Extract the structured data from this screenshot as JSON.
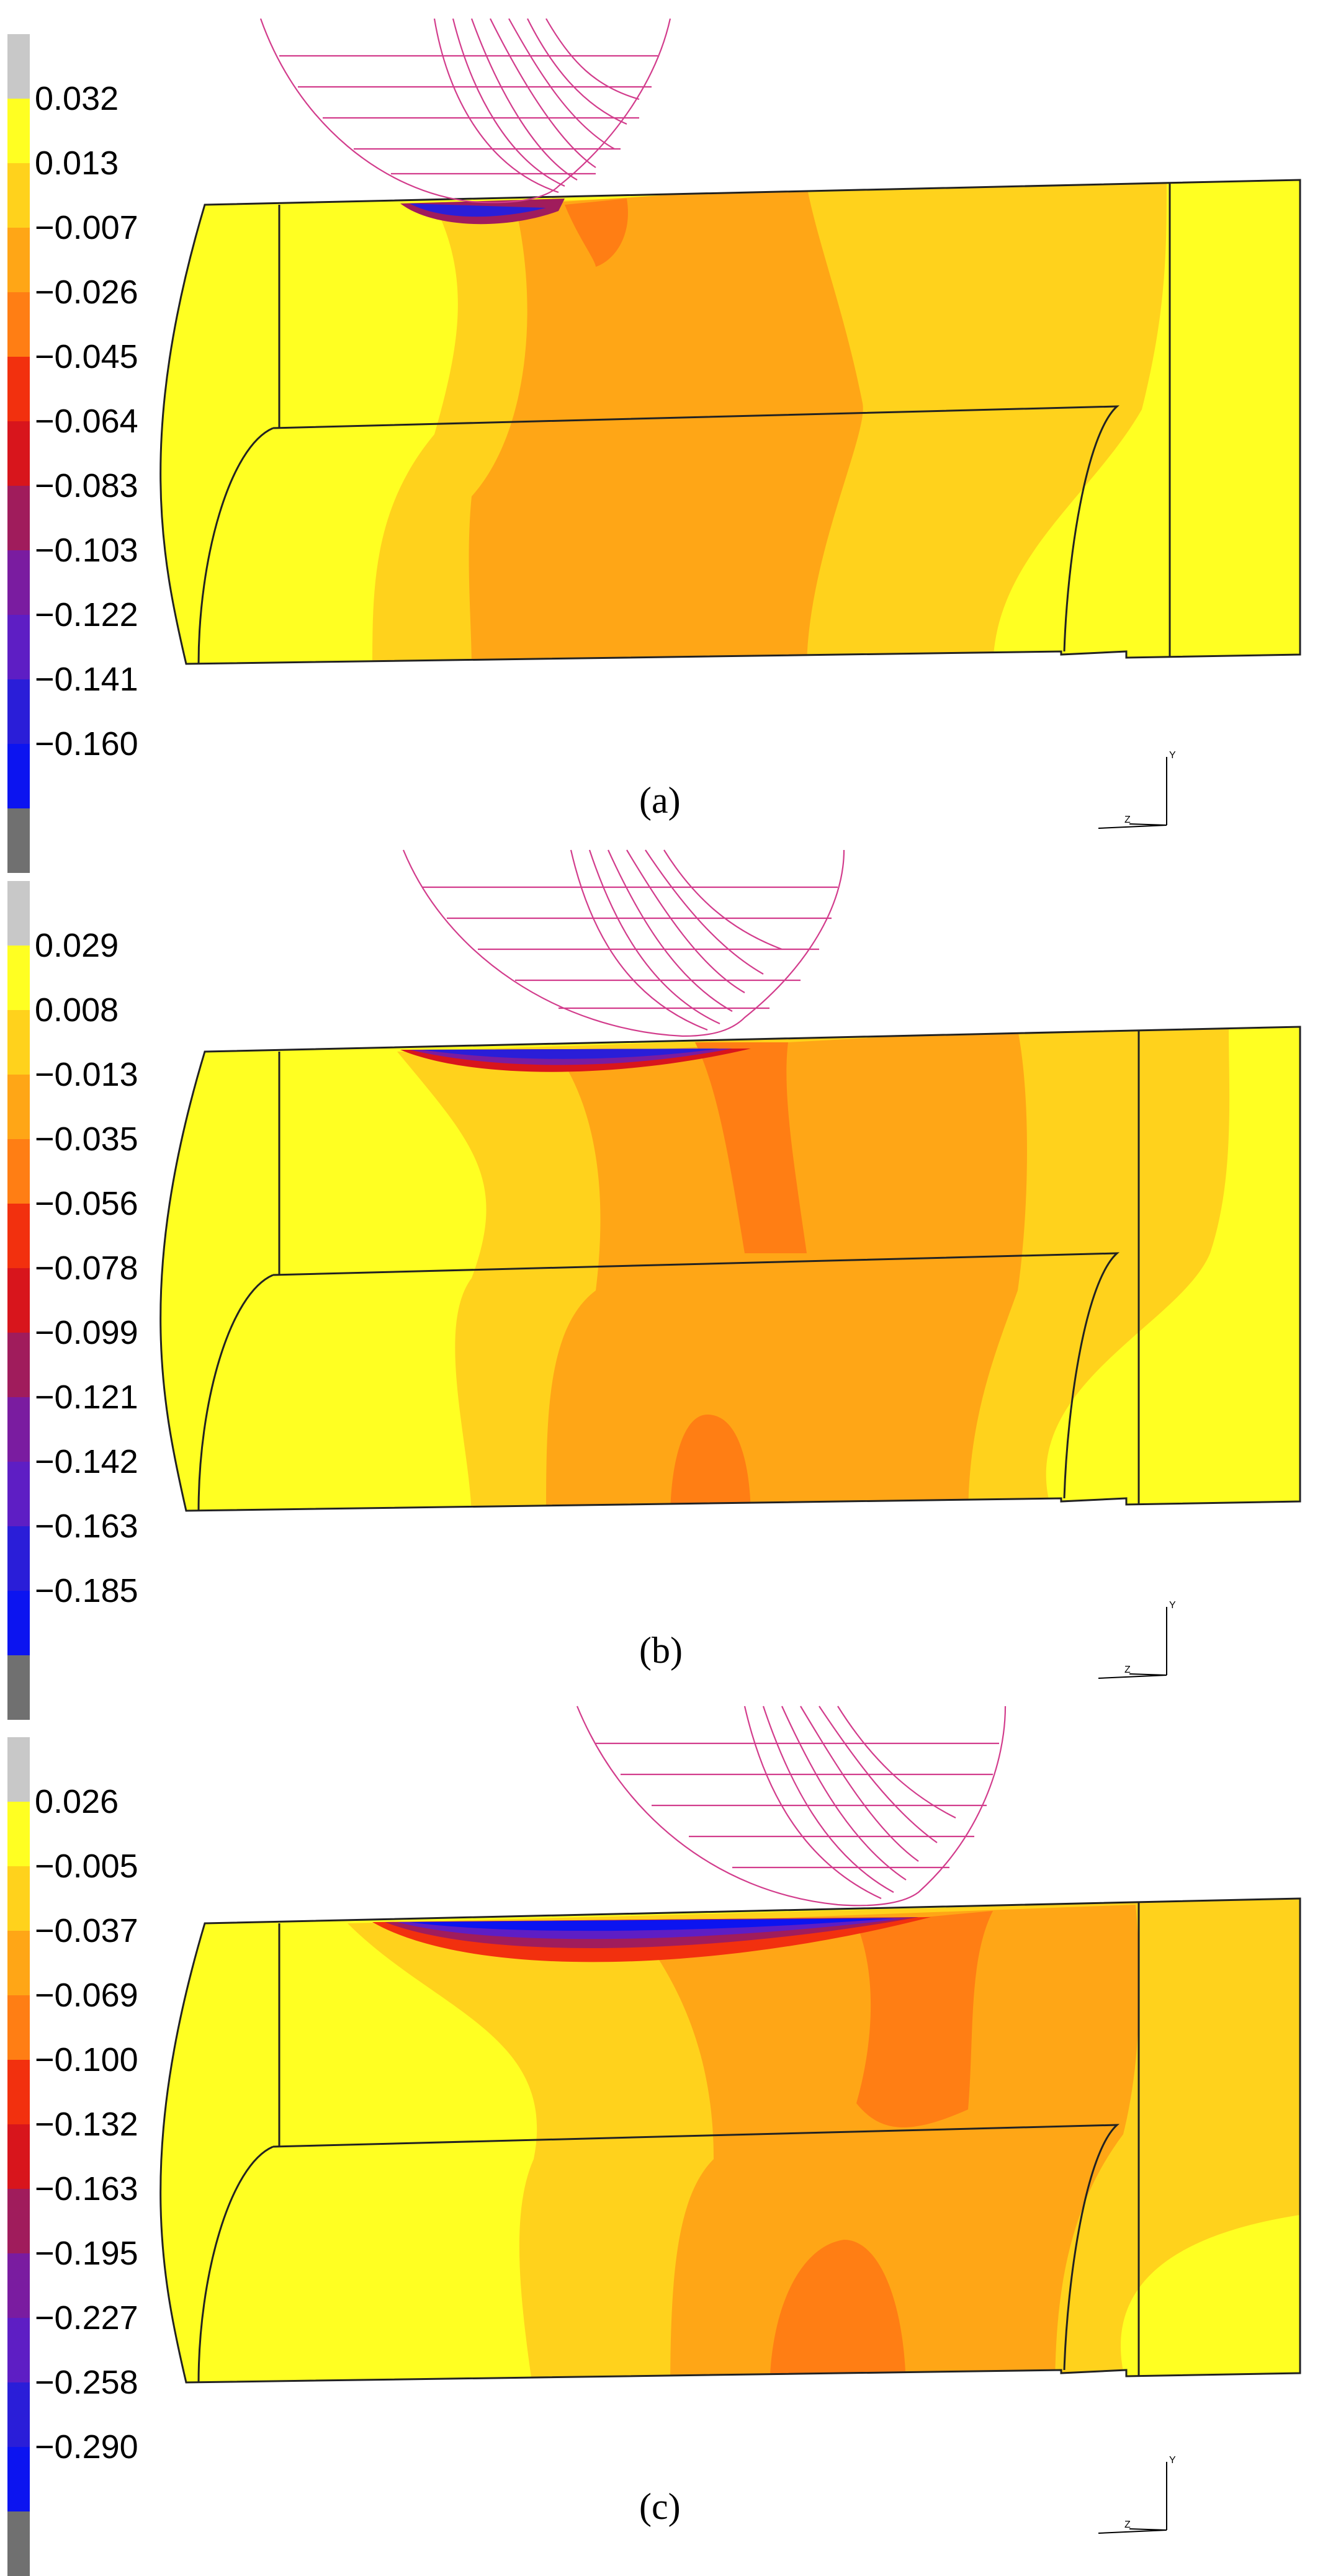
{
  "figure": {
    "panels": [
      {
        "caption": "(a)",
        "legend_colors": [
          "#c8c8c8",
          "#ffff22",
          "#ffd21c",
          "#ffa616",
          "#ff7e14",
          "#f2300e",
          "#d8151c",
          "#a01c5c",
          "#7a1ca0",
          "#5e1ec4",
          "#2a1ed8",
          "#0c14f0",
          "#707070"
        ],
        "legend_values": [
          "0.032",
          "0.013",
          "−0.007",
          "−0.026",
          "−0.045",
          "−0.064",
          "−0.083",
          "−0.103",
          "−0.122",
          "−0.141",
          "−0.160"
        ]
      },
      {
        "caption": "(b)",
        "legend_colors": [
          "#c8c8c8",
          "#ffff22",
          "#ffd21c",
          "#ffa616",
          "#ff7e14",
          "#f2300e",
          "#d8151c",
          "#a01c5c",
          "#7a1ca0",
          "#5e1ec4",
          "#2a1ed8",
          "#0c14f0",
          "#707070"
        ],
        "legend_values": [
          "0.029",
          "0.008",
          "−0.013",
          "−0.035",
          "−0.056",
          "−0.078",
          "−0.099",
          "−0.121",
          "−0.142",
          "−0.163",
          "−0.185"
        ]
      },
      {
        "caption": "(c)",
        "legend_colors": [
          "#c8c8c8",
          "#ffff22",
          "#ffd21c",
          "#ffa616",
          "#ff7e14",
          "#f2300e",
          "#d8151c",
          "#a01c5c",
          "#7a1ca0",
          "#5e1ec4",
          "#2a1ed8",
          "#0c14f0",
          "#707070"
        ],
        "legend_values": [
          "0.026",
          "−0.005",
          "−0.037",
          "−0.069",
          "−0.100",
          "−0.132",
          "−0.163",
          "−0.195",
          "−0.227",
          "−0.258",
          "−0.290"
        ]
      }
    ]
  }
}
